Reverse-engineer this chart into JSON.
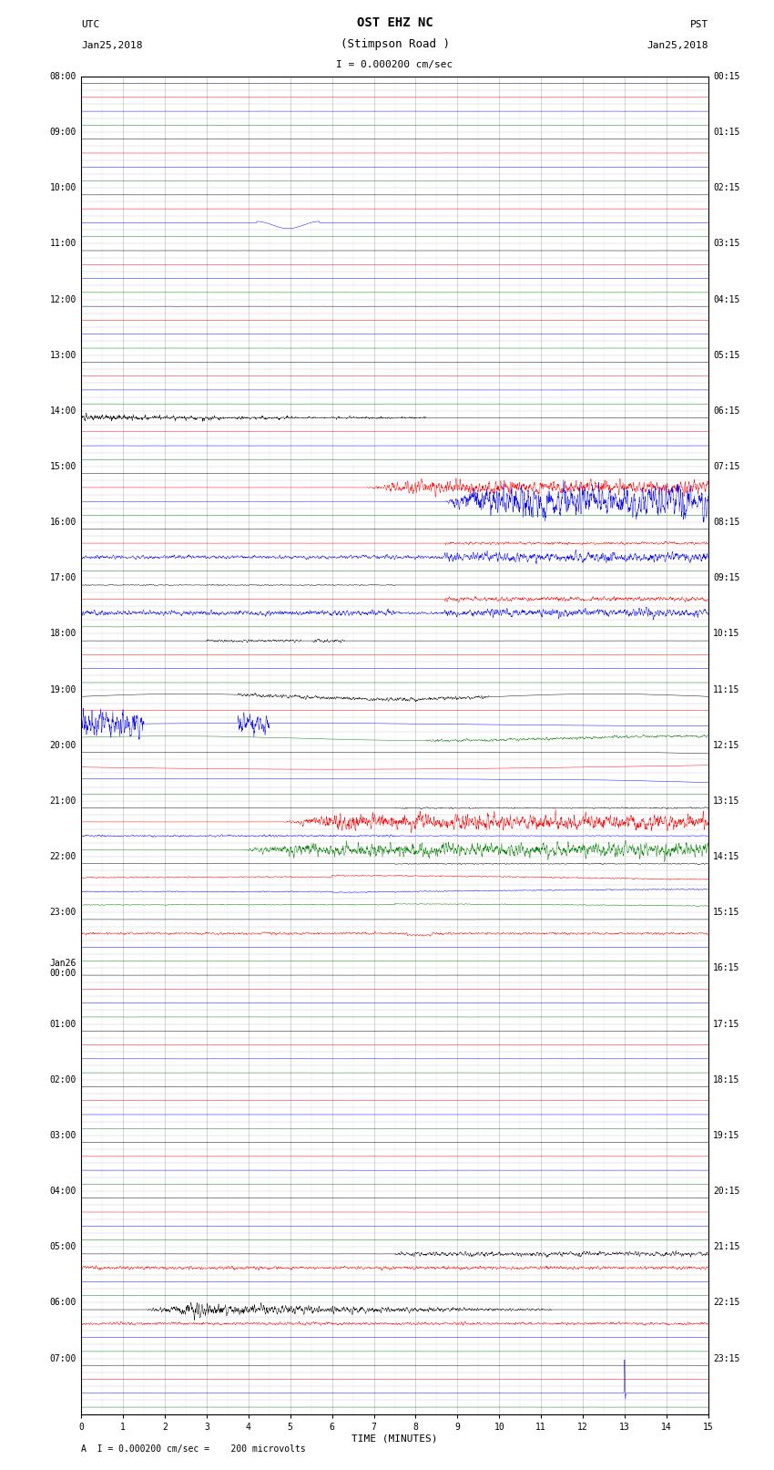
{
  "title_line1": "OST EHZ NC",
  "title_line2": "(Stimpson Road )",
  "scale_label": "I = 0.000200 cm/sec",
  "bottom_label": "A  I = 0.000200 cm/sec =    200 microvolts",
  "xlabel": "TIME (MINUTES)",
  "utc_label_line1": "UTC",
  "utc_label_line2": "Jan25,2018",
  "pst_label_line1": "PST",
  "pst_label_line2": "Jan25,2018",
  "left_times": [
    "08:00",
    "09:00",
    "10:00",
    "11:00",
    "12:00",
    "13:00",
    "14:00",
    "15:00",
    "16:00",
    "17:00",
    "18:00",
    "19:00",
    "20:00",
    "21:00",
    "22:00",
    "23:00",
    "Jan26\n00:00",
    "01:00",
    "02:00",
    "03:00",
    "04:00",
    "05:00",
    "06:00",
    "07:00"
  ],
  "left_rows": [
    0,
    4,
    8,
    12,
    16,
    20,
    24,
    28,
    32,
    36,
    40,
    44,
    48,
    52,
    56,
    60,
    64,
    68,
    72,
    76,
    80,
    84,
    88,
    92
  ],
  "right_times": [
    "00:15",
    "01:15",
    "02:15",
    "03:15",
    "04:15",
    "05:15",
    "06:15",
    "07:15",
    "08:15",
    "09:15",
    "10:15",
    "11:15",
    "12:15",
    "13:15",
    "14:15",
    "15:15",
    "16:15",
    "17:15",
    "18:15",
    "19:15",
    "20:15",
    "21:15",
    "22:15",
    "23:15"
  ],
  "right_rows": [
    0,
    4,
    8,
    12,
    16,
    20,
    24,
    28,
    32,
    36,
    40,
    44,
    48,
    52,
    56,
    60,
    64,
    68,
    72,
    76,
    80,
    84,
    88,
    92
  ],
  "n_rows": 96,
  "duration": 15,
  "bg_color": "#ffffff",
  "grid_color": "#999999",
  "colors": [
    "black",
    "red",
    "blue",
    "green"
  ],
  "title_fs": 9,
  "tick_fs": 7,
  "label_fs": 8
}
